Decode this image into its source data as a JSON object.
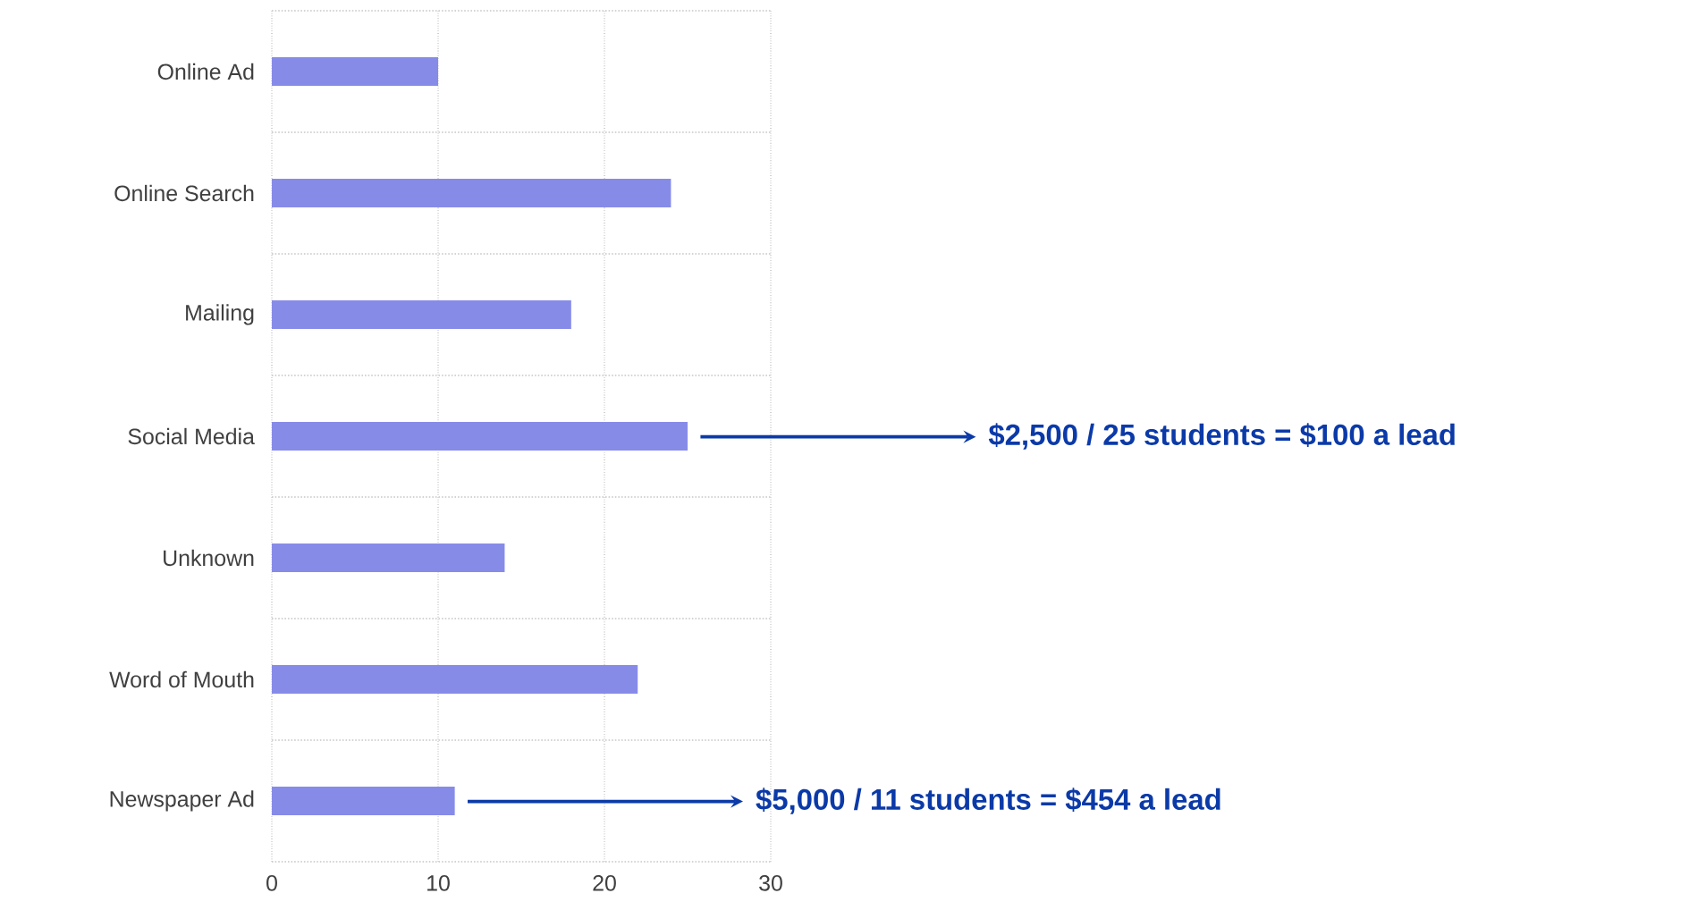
{
  "chart_data": {
    "type": "bar",
    "orientation": "horizontal",
    "categories": [
      "Online Ad",
      "Online Search",
      "Mailing",
      "Social Media",
      "Unknown",
      "Word of Mouth",
      "Newspaper Ad"
    ],
    "values": [
      10,
      24,
      18,
      25,
      14,
      22,
      11
    ],
    "color": "#878be8",
    "xlim": [
      0,
      30
    ],
    "xticks": [
      0,
      10,
      20,
      30
    ],
    "grid": true,
    "annotations": [
      {
        "text": "$2,500 / 25 students = $100 a lead",
        "x": 25,
        "y": "Social Media"
      },
      {
        "text": "$5,000 / 11 students = $454 a lead",
        "x": 11,
        "y": "Newspaper Ad"
      }
    ]
  }
}
